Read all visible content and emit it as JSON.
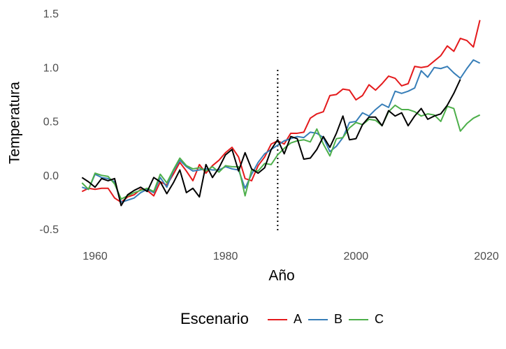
{
  "chart_data": {
    "type": "line",
    "x_label": "Año",
    "y_label": "Temperatura",
    "x": [
      1958,
      1959,
      1960,
      1961,
      1962,
      1963,
      1964,
      1965,
      1966,
      1967,
      1968,
      1969,
      1970,
      1971,
      1972,
      1973,
      1974,
      1975,
      1976,
      1977,
      1978,
      1979,
      1980,
      1981,
      1982,
      1983,
      1984,
      1985,
      1986,
      1987,
      1988,
      1989,
      1990,
      1991,
      1992,
      1993,
      1994,
      1995,
      1996,
      1997,
      1998,
      1999,
      2000,
      2001,
      2002,
      2003,
      2004,
      2005,
      2006,
      2007,
      2008,
      2009,
      2010,
      2011,
      2012,
      2013,
      2014,
      2015,
      2016,
      2017,
      2018,
      2019
    ],
    "series": [
      {
        "name": "A",
        "color": "#e41a1c",
        "values": [
          -0.14,
          -0.11,
          -0.12,
          -0.11,
          -0.11,
          -0.2,
          -0.24,
          -0.19,
          -0.17,
          -0.12,
          -0.13,
          -0.18,
          -0.05,
          -0.08,
          0.02,
          0.13,
          0.05,
          -0.04,
          0.11,
          0.03,
          0.1,
          0.15,
          0.22,
          0.27,
          0.18,
          -0.02,
          -0.04,
          0.1,
          0.18,
          0.3,
          0.33,
          0.3,
          0.4,
          0.4,
          0.41,
          0.54,
          0.58,
          0.6,
          0.75,
          0.76,
          0.81,
          0.8,
          0.71,
          0.75,
          0.85,
          0.8,
          0.86,
          0.93,
          0.91,
          0.84,
          0.86,
          1.02,
          1.01,
          1.02,
          1.07,
          1.12,
          1.21,
          1.16,
          1.28,
          1.26,
          1.2,
          1.45
        ]
      },
      {
        "name": "B",
        "color": "#377eb8",
        "values": [
          -0.1,
          -0.12,
          0.02,
          -0.01,
          -0.02,
          -0.05,
          -0.24,
          -0.22,
          -0.2,
          -0.15,
          -0.12,
          -0.15,
          -0.01,
          -0.1,
          0.05,
          0.15,
          0.09,
          0.05,
          0.06,
          0.07,
          0.06,
          0.06,
          0.09,
          0.07,
          0.06,
          -0.11,
          0.02,
          0.13,
          0.21,
          0.25,
          0.29,
          0.33,
          0.35,
          0.37,
          0.36,
          0.41,
          0.4,
          0.36,
          0.23,
          0.28,
          0.36,
          0.5,
          0.51,
          0.59,
          0.56,
          0.62,
          0.67,
          0.64,
          0.79,
          0.77,
          0.79,
          0.82,
          0.98,
          0.92,
          1.01,
          1.0,
          1.02,
          0.96,
          0.91,
          1.0,
          1.08,
          1.05
        ]
      },
      {
        "name": "C",
        "color": "#4daf4a",
        "values": [
          -0.06,
          -0.12,
          0.03,
          0.01,
          0.0,
          -0.07,
          -0.21,
          -0.18,
          -0.15,
          -0.13,
          -0.11,
          -0.14,
          0.02,
          -0.06,
          0.06,
          0.17,
          0.1,
          0.07,
          0.08,
          0.05,
          0.09,
          0.04,
          0.1,
          0.09,
          0.09,
          -0.18,
          0.06,
          0.05,
          0.12,
          0.11,
          0.2,
          0.26,
          0.31,
          0.33,
          0.34,
          0.32,
          0.44,
          0.3,
          0.19,
          0.35,
          0.36,
          0.45,
          0.5,
          0.48,
          0.53,
          0.52,
          0.47,
          0.6,
          0.66,
          0.62,
          0.62,
          0.6,
          0.56,
          0.58,
          0.57,
          0.51,
          0.65,
          0.63,
          0.42,
          0.49,
          0.54,
          0.57
        ]
      },
      {
        "color": "#000000",
        "values": [
          -0.01,
          -0.05,
          -0.1,
          -0.02,
          -0.04,
          -0.02,
          -0.27,
          -0.17,
          -0.13,
          -0.1,
          -0.14,
          -0.01,
          -0.05,
          -0.16,
          -0.06,
          0.06,
          -0.15,
          -0.11,
          -0.19,
          0.11,
          -0.01,
          0.08,
          0.2,
          0.25,
          0.05,
          0.22,
          0.07,
          0.03,
          0.08,
          0.25,
          0.34,
          0.21,
          0.37,
          0.35,
          0.16,
          0.17,
          0.25,
          0.37,
          0.27,
          0.4,
          0.56,
          0.34,
          0.35,
          0.48,
          0.55,
          0.55,
          0.47,
          0.61,
          0.56,
          0.59,
          0.47,
          0.56,
          0.63,
          0.53,
          0.56,
          0.58,
          0.66,
          0.77,
          0.9,
          null,
          null,
          null
        ]
      }
    ],
    "legend_title": "Escenario",
    "legend": "bottom",
    "vline": {
      "x": 1988,
      "y": [
        -0.5,
        1.0
      ]
    },
    "xlim": [
      1960,
      2020
    ],
    "xticks": [
      1960,
      1980,
      2000,
      2020
    ],
    "ylim": [
      -0.5,
      1.5
    ],
    "yticks": [
      -0.5,
      {
        "value": 0,
        "label": "0.0"
      },
      0.5,
      {
        "value": 1,
        "label": "1.0"
      },
      1.5
    ],
    "grid": false
  }
}
